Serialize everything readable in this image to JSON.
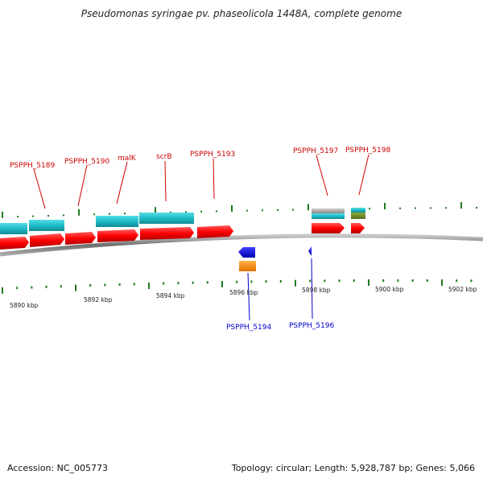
{
  "title": "Pseudomonas syringae pv. phaseolicola 1448A, complete genome",
  "footer": {
    "accession": "Accession: NC_005773",
    "summary": "Topology: circular; Length: 5,928,787 bp; Genes: 5,066"
  },
  "axis": {
    "tick_labels": [
      "5890 kbp",
      "5892 kbp",
      "5894 kbp",
      "5896 kbp",
      "5898 kbp",
      "5900 kbp",
      "5902 kbp"
    ]
  },
  "gene_labels": {
    "forward": [
      "PSPPH_5189",
      "PSPPH_5190",
      "malK",
      "scrB",
      "PSPPH_5193",
      "PSPPH_5197",
      "PSPPH_5198"
    ],
    "reverse": [
      "PSPPH_5194",
      "PSPPH_5196"
    ]
  },
  "colors": {
    "forward_gene": "#ff0000",
    "reverse_gene": "#1010ee",
    "forward_label": "#cc0000",
    "reverse_label": "#0000cc",
    "cds": "#22b8c4",
    "rrna_orange": "#ff8c00",
    "grey_feature": "#a0a0a0",
    "olive_feature": "#6f8a2a",
    "gc_ticks": "#1f7a1f",
    "backbone": "#7a7a7a"
  }
}
